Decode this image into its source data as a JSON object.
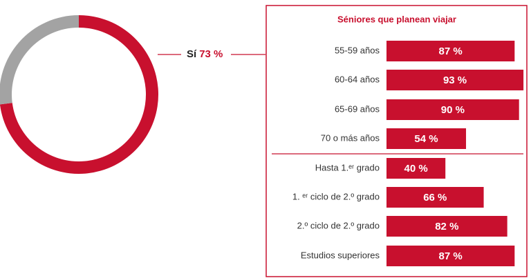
{
  "chart_data": [
    {
      "type": "donut",
      "categories": [
        "Sí",
        null
      ],
      "values": [
        73,
        27
      ],
      "value_labels": [
        "73 %",
        null
      ],
      "colors": [
        "#c8102e",
        "#a3a3a3"
      ]
    },
    {
      "type": "hbar",
      "title": "Séniores que planean viajar",
      "categories": [
        "55-59 años",
        "60-64 años",
        "65-69 años",
        "70 o más años",
        "Hasta 1.ᵉʳ grado",
        "1. ᵉʳ ciclo de 2.º grado",
        "2.º ciclo de 2.º grado",
        "Estudios superiores"
      ],
      "values": [
        87,
        93,
        90,
        54,
        40,
        66,
        82,
        87
      ],
      "value_labels": [
        "87 %",
        "93 %",
        "90 %",
        "54 %",
        "40 %",
        "66 %",
        "82 %",
        "87 %"
      ],
      "color": "#c8102e",
      "xlim": [
        0,
        100
      ]
    }
  ]
}
